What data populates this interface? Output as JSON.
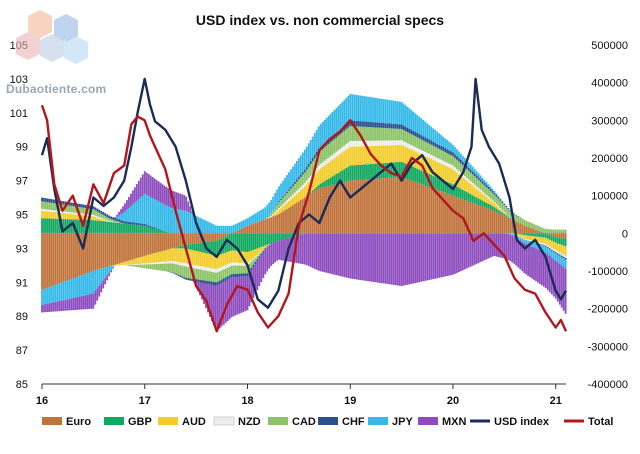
{
  "watermark": {
    "text": "Dubaotiente.com"
  },
  "chart_data": {
    "type": "bar+line",
    "title": "USD index vs. non commercial specs",
    "x_ticks": [
      "16",
      "17",
      "18",
      "19",
      "20",
      "21"
    ],
    "x_range": [
      2016.0,
      2021.1
    ],
    "left_axis": {
      "ticks": [
        85,
        87,
        89,
        91,
        93,
        95,
        97,
        99,
        101,
        103,
        105
      ],
      "range": [
        85,
        105
      ]
    },
    "right_axis": {
      "ticks": [
        -400000,
        -300000,
        -200000,
        -100000,
        0,
        100000,
        200000,
        300000,
        400000,
        500000
      ],
      "labels": [
        "-400000",
        "-300000",
        "-200000",
        "-100000",
        "0",
        "100000",
        "200000",
        "300000",
        "400000",
        "500000"
      ],
      "range": [
        -400000,
        500000
      ]
    },
    "legend": [
      {
        "name": "Euro",
        "color": "#C0733B",
        "kind": "box"
      },
      {
        "name": "GBP",
        "color": "#11A860",
        "kind": "box"
      },
      {
        "name": "AUD",
        "color": "#F2CD2C",
        "kind": "box"
      },
      {
        "name": "NZD",
        "color": "#EDEDED",
        "kind": "box"
      },
      {
        "name": "CAD",
        "color": "#8DC367",
        "kind": "box"
      },
      {
        "name": "CHF",
        "color": "#2C4F8E",
        "kind": "box"
      },
      {
        "name": "JPY",
        "color": "#34B9E8",
        "kind": "box"
      },
      {
        "name": "MXN",
        "color": "#8E4DBF",
        "kind": "box"
      },
      {
        "name": "USD index",
        "color": "#1B2B57",
        "kind": "line"
      },
      {
        "name": "Total",
        "color": "#B3171E",
        "kind": "line"
      }
    ],
    "stack_order_positive": [
      "Euro",
      "GBP",
      "AUD",
      "NZD",
      "CAD",
      "CHF",
      "JPY",
      "MXN"
    ],
    "stack_order_negative": [
      "Euro",
      "GBP",
      "AUD",
      "NZD",
      "CAD",
      "CHF",
      "JPY",
      "MXN"
    ],
    "series": [
      {
        "name": "Euro",
        "axis": "right",
        "x": [
          2016.0,
          2016.5,
          2017.0,
          2017.4,
          2017.7,
          2018.0,
          2018.3,
          2018.7,
          2019.0,
          2019.5,
          2020.0,
          2020.4,
          2020.7,
          2021.0,
          2021.1
        ],
        "values": [
          -150000,
          -100000,
          -60000,
          -30000,
          -20000,
          20000,
          50000,
          120000,
          140000,
          150000,
          100000,
          60000,
          20000,
          -10000,
          -15000
        ]
      },
      {
        "name": "GBP",
        "axis": "right",
        "x": [
          2016.0,
          2016.5,
          2017.0,
          2017.4,
          2017.7,
          2018.0,
          2018.3,
          2018.7,
          2019.0,
          2019.5,
          2020.0,
          2020.4,
          2020.7,
          2021.0,
          2021.1
        ],
        "values": [
          40000,
          35000,
          20000,
          -10000,
          -40000,
          -50000,
          -20000,
          10000,
          40000,
          40000,
          30000,
          10000,
          -5000,
          -15000,
          -20000
        ]
      },
      {
        "name": "AUD",
        "axis": "right",
        "x": [
          2016.0,
          2016.5,
          2017.0,
          2017.4,
          2017.7,
          2018.0,
          2018.3,
          2018.7,
          2019.0,
          2019.5,
          2020.0,
          2020.4,
          2020.7,
          2021.0,
          2021.1
        ],
        "values": [
          20000,
          10000,
          -20000,
          -40000,
          -35000,
          -30000,
          10000,
          40000,
          50000,
          45000,
          40000,
          10000,
          -10000,
          -20000,
          -25000
        ]
      },
      {
        "name": "NZD",
        "axis": "right",
        "x": [
          2016.0,
          2016.5,
          2017.0,
          2017.4,
          2017.7,
          2018.0,
          2018.3,
          2018.7,
          2019.0,
          2019.5,
          2020.0,
          2020.4,
          2020.7,
          2021.0,
          2021.1
        ],
        "values": [
          5000,
          4000,
          -3000,
          -8000,
          -10000,
          -6000,
          5000,
          12000,
          15000,
          12000,
          10000,
          4000,
          -2000,
          -5000,
          -6000
        ]
      },
      {
        "name": "CAD",
        "axis": "right",
        "x": [
          2016.0,
          2016.5,
          2017.0,
          2017.4,
          2017.7,
          2018.0,
          2018.3,
          2018.7,
          2019.0,
          2019.5,
          2020.0,
          2020.4,
          2020.7,
          2021.0,
          2021.1
        ],
        "values": [
          20000,
          15000,
          -10000,
          -30000,
          -25000,
          -20000,
          15000,
          35000,
          40000,
          30000,
          25000,
          20000,
          15000,
          10000,
          10000
        ]
      },
      {
        "name": "CHF",
        "axis": "right",
        "x": [
          2016.0,
          2016.5,
          2017.0,
          2017.4,
          2017.7,
          2018.0,
          2018.3,
          2018.7,
          2019.0,
          2019.5,
          2020.0,
          2020.4,
          2020.7,
          2021.0,
          2021.1
        ],
        "values": [
          10000,
          8000,
          5000,
          -5000,
          -10000,
          -8000,
          2000,
          10000,
          15000,
          12000,
          10000,
          5000,
          0,
          -3000,
          -4000
        ]
      },
      {
        "name": "JPY",
        "axis": "right",
        "x": [
          2016.0,
          2016.5,
          2017.0,
          2017.4,
          2017.7,
          2018.0,
          2018.3,
          2018.7,
          2019.0,
          2019.5,
          2020.0,
          2020.4,
          2020.7,
          2021.0,
          2021.1
        ],
        "values": [
          -40000,
          -60000,
          80000,
          60000,
          20000,
          20000,
          40000,
          60000,
          70000,
          60000,
          20000,
          5000,
          -10000,
          -20000,
          -25000
        ]
      },
      {
        "name": "MXN",
        "axis": "right",
        "x": [
          2016.0,
          2016.5,
          2017.0,
          2017.4,
          2017.7,
          2018.0,
          2018.3,
          2018.7,
          2019.0,
          2019.5,
          2020.0,
          2020.4,
          2020.7,
          2021.0,
          2021.1
        ],
        "values": [
          -20000,
          -40000,
          60000,
          40000,
          -120000,
          -90000,
          -50000,
          -100000,
          -120000,
          -140000,
          -110000,
          -60000,
          -80000,
          -100000,
          -120000
        ]
      },
      {
        "name": "USD index",
        "axis": "left",
        "x": [
          2016.0,
          2016.05,
          2016.12,
          2016.2,
          2016.3,
          2016.4,
          2016.5,
          2016.6,
          2016.7,
          2016.8,
          2016.87,
          2016.93,
          2017.0,
          2017.05,
          2017.1,
          2017.2,
          2017.3,
          2017.4,
          2017.5,
          2017.6,
          2017.7,
          2017.8,
          2017.9,
          2018.0,
          2018.1,
          2018.2,
          2018.3,
          2018.4,
          2018.5,
          2018.6,
          2018.7,
          2018.8,
          2018.9,
          2019.0,
          2019.1,
          2019.2,
          2019.3,
          2019.4,
          2019.5,
          2019.6,
          2019.7,
          2019.8,
          2019.9,
          2020.0,
          2020.1,
          2020.18,
          2020.22,
          2020.28,
          2020.35,
          2020.45,
          2020.55,
          2020.62,
          2020.7,
          2020.8,
          2020.9,
          2021.0,
          2021.05,
          2021.1
        ],
        "values": [
          98.5,
          99.5,
          96.5,
          94.0,
          94.5,
          93.0,
          96.0,
          95.5,
          96.0,
          97.0,
          99.0,
          101.0,
          103.0,
          101.5,
          100.5,
          100.0,
          99.0,
          97.0,
          94.5,
          93.0,
          92.5,
          93.5,
          93.0,
          92.0,
          90.0,
          89.5,
          90.5,
          93.0,
          94.5,
          95.0,
          94.5,
          96.0,
          97.0,
          96.0,
          96.5,
          97.0,
          97.5,
          98.0,
          97.0,
          98.0,
          98.5,
          97.5,
          97.0,
          96.5,
          97.5,
          99.0,
          103.0,
          100.0,
          99.0,
          98.0,
          96.0,
          93.5,
          93.0,
          93.5,
          92.5,
          90.5,
          90.0,
          90.5
        ]
      },
      {
        "name": "Total",
        "axis": "right",
        "x": [
          2016.0,
          2016.05,
          2016.12,
          2016.2,
          2016.3,
          2016.4,
          2016.5,
          2016.6,
          2016.7,
          2016.8,
          2016.87,
          2016.93,
          2017.0,
          2017.05,
          2017.1,
          2017.2,
          2017.3,
          2017.4,
          2017.5,
          2017.6,
          2017.7,
          2017.8,
          2017.9,
          2018.0,
          2018.1,
          2018.2,
          2018.3,
          2018.4,
          2018.5,
          2018.6,
          2018.7,
          2018.8,
          2018.9,
          2019.0,
          2019.1,
          2019.2,
          2019.3,
          2019.4,
          2019.5,
          2019.6,
          2019.7,
          2019.8,
          2019.9,
          2020.0,
          2020.1,
          2020.2,
          2020.3,
          2020.4,
          2020.5,
          2020.6,
          2020.7,
          2020.8,
          2020.9,
          2021.0,
          2021.05,
          2021.1
        ],
        "values": [
          340000,
          300000,
          130000,
          60000,
          100000,
          20000,
          130000,
          80000,
          160000,
          180000,
          290000,
          310000,
          300000,
          260000,
          230000,
          170000,
          60000,
          -40000,
          -140000,
          -180000,
          -260000,
          -190000,
          -140000,
          -150000,
          -210000,
          -250000,
          -220000,
          -160000,
          20000,
          110000,
          220000,
          250000,
          270000,
          300000,
          260000,
          210000,
          180000,
          160000,
          150000,
          200000,
          180000,
          120000,
          90000,
          60000,
          40000,
          -20000,
          0,
          -30000,
          -60000,
          -120000,
          -150000,
          -160000,
          -210000,
          -250000,
          -230000,
          -260000
        ]
      }
    ]
  }
}
